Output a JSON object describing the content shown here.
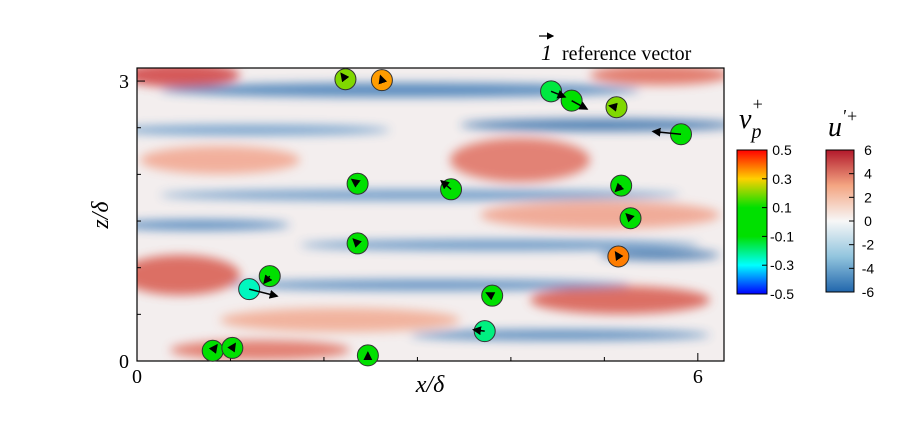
{
  "chart_data": {
    "type": "scatter",
    "xlabel": "x/δ",
    "ylabel": "z/δ",
    "xlim": [
      0,
      6.28
    ],
    "ylim": [
      0,
      3.14
    ],
    "xticks": [
      0,
      6
    ],
    "yticks": [
      0,
      3
    ],
    "xminor": [
      1,
      2,
      3,
      4,
      5
    ],
    "yminor": [
      0.5,
      1,
      1.5,
      2,
      2.5
    ],
    "particles": {
      "x": [
        2.23,
        2.62,
        4.43,
        4.65,
        5.13,
        5.82,
        2.36,
        3.36,
        5.18,
        5.28,
        2.36,
        5.15,
        1.42,
        1.2,
        3.8,
        3.72,
        0.81,
        1.02,
        2.47
      ],
      "z": [
        3.02,
        3.01,
        2.89,
        2.79,
        2.72,
        2.43,
        1.9,
        1.84,
        1.88,
        1.53,
        1.26,
        1.12,
        0.91,
        0.77,
        0.7,
        0.32,
        0.11,
        0.14,
        0.06
      ],
      "v": [
        0.2,
        0.35,
        -0.15,
        0.0,
        0.2,
        0.05,
        0.0,
        0.0,
        0.05,
        0.0,
        0.0,
        0.38,
        0.05,
        -0.25,
        -0.05,
        -0.2,
        0.0,
        0.0,
        0.0
      ],
      "u": [
        -0.3,
        -0.1,
        1.0,
        1.1,
        -0.5,
        -2.0,
        -0.4,
        -0.7,
        -0.4,
        -0.3,
        -0.3,
        -0.2,
        -0.4,
        2.0,
        -0.4,
        -0.8,
        0.3,
        0.2,
        0.0
      ],
      "w": [
        0.4,
        0.3,
        -0.4,
        -0.6,
        0.1,
        0.2,
        0.3,
        0.6,
        -0.4,
        0.3,
        0.3,
        0.3,
        -0.5,
        -0.5,
        0.2,
        0.1,
        0.4,
        0.3,
        0.2
      ]
    },
    "reference": {
      "magnitude": 1,
      "label": "reference vector"
    },
    "colorbars": [
      {
        "title": {
          "base": "v",
          "sub": "p",
          "sup": "+"
        },
        "lim": [
          -0.5,
          0.5
        ],
        "ticks": [
          0.5,
          0.3,
          0.1,
          -0.1,
          -0.3,
          -0.5
        ],
        "colors": [
          "#0000ff",
          "#00ffff",
          "#00e000",
          "#00e000",
          "#ffd000",
          "#ff0000"
        ]
      },
      {
        "title": {
          "base": "u",
          "sup": "'+"
        },
        "lim": [
          -6,
          6
        ],
        "ticks": [
          6,
          4,
          2,
          0,
          -2,
          -4,
          -6
        ],
        "colors": [
          "#2166ac",
          "#92c5de",
          "#f7f7f7",
          "#f4a582",
          "#b2182b"
        ]
      }
    ]
  }
}
